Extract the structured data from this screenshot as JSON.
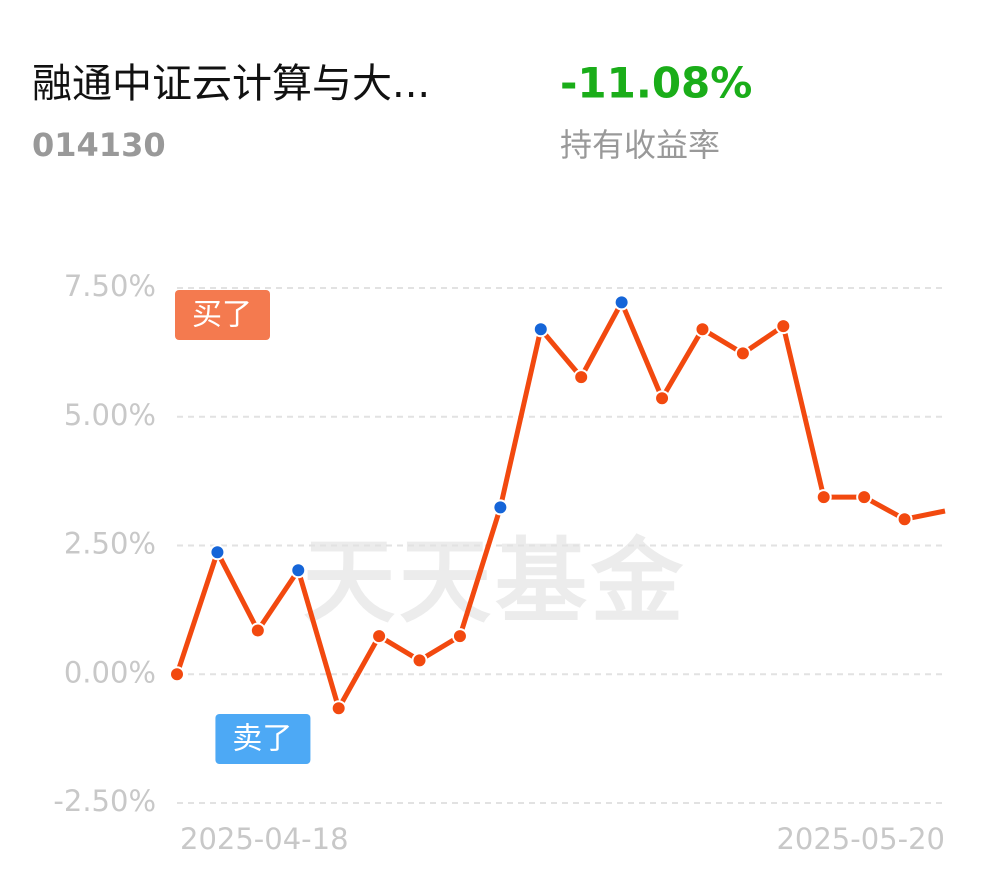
{
  "header": {
    "title": "融通中证云计算与大...",
    "code": "014130",
    "return": "-11.08%",
    "return_label": "持有收益率"
  },
  "chart_data": {
    "type": "line",
    "watermark": "天天基金",
    "categories": [
      "2025-04-18",
      null,
      null,
      null,
      null,
      null,
      null,
      null,
      null,
      null,
      null,
      null,
      null,
      null,
      null,
      null,
      null,
      null,
      null,
      "2025-05-20"
    ],
    "values": [
      0.0,
      2.37,
      0.85,
      2.02,
      -0.66,
      0.74,
      0.27,
      0.74,
      3.24,
      6.7,
      5.77,
      7.22,
      5.36,
      6.7,
      6.23,
      6.76,
      3.44,
      3.44,
      3.01,
      3.17
    ],
    "color": "#f2490f",
    "marker_colors": [
      "#f2490f",
      "#1565d8",
      "#f2490f",
      "#1565d8",
      "#f2490f",
      "#f2490f",
      "#f2490f",
      "#f2490f",
      "#1565d8",
      "#1565d8",
      "#f2490f",
      "#1565d8",
      "#f2490f",
      "#f2490f",
      "#f2490f",
      "#f2490f",
      "#f2490f",
      "#f2490f",
      "#f2490f",
      null
    ],
    "ylim": [
      -2.5,
      7.5
    ],
    "yticks": [
      {
        "value": 7.5,
        "label": "7.50%"
      },
      {
        "value": 5,
        "label": "5.00%"
      },
      {
        "value": 2.5,
        "label": "2.50%"
      },
      {
        "value": 0,
        "label": "0.00%"
      },
      {
        "value": -2.5,
        "label": "-2.50%"
      }
    ],
    "grid": true,
    "annotations": [
      {
        "text": "买了",
        "index": 0,
        "color": "#f47a4f",
        "position": "top"
      },
      {
        "text": "卖了",
        "index": 1,
        "color": "#4da9f5",
        "position": "bottom"
      }
    ]
  }
}
